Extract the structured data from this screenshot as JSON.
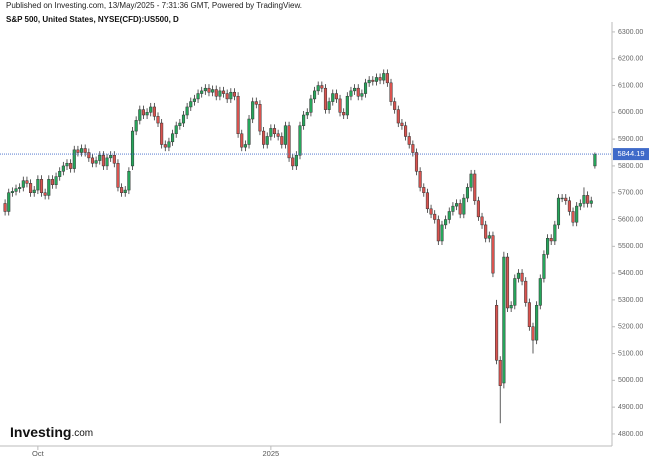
{
  "chart_data": {
    "type": "candlestick",
    "publisher_note": "Published on Investing.com, 13/May/2025 - 7:31:36 GMT, Powered by TradingView.",
    "title": "S&P 500, United States, NYSE(CFD):US500, D",
    "logo_main": "Investing",
    "logo_suffix": ".com",
    "up_color": "#26a65b",
    "down_color": "#d9534f",
    "last_price": 5844.19,
    "last_price_color": "#3f6ac9",
    "ylim": [
      4755,
      6337
    ],
    "yticks": [
      {
        "value": 4800,
        "label": "4800.00"
      },
      {
        "value": 4900,
        "label": "4900.00"
      },
      {
        "value": 5000,
        "label": "5000.00"
      },
      {
        "value": 5100,
        "label": "5100.00"
      },
      {
        "value": 5200,
        "label": "5200.00"
      },
      {
        "value": 5300,
        "label": "5300.00"
      },
      {
        "value": 5400,
        "label": "5400.00"
      },
      {
        "value": 5500,
        "label": "5500.00"
      },
      {
        "value": 5600,
        "label": "5600.00"
      },
      {
        "value": 5700,
        "label": "5700.00"
      },
      {
        "value": 5800,
        "label": "5800.00"
      },
      {
        "value": 5900,
        "label": "5900.00"
      },
      {
        "value": 6000,
        "label": "6000.00"
      },
      {
        "value": 6100,
        "label": "6100.00"
      },
      {
        "value": 6200,
        "label": "6200.00"
      },
      {
        "value": 6300,
        "label": "6300.00"
      }
    ],
    "xlim": [
      -1.4,
      166.7
    ],
    "xticks": [
      {
        "value": 9,
        "label": "Oct"
      },
      {
        "value": 73,
        "label": "2025"
      }
    ],
    "open": [
      5660,
      5630,
      5700,
      5705,
      5715,
      5720,
      5745,
      5735,
      5700,
      5710,
      5750,
      5700,
      5690,
      5750,
      5730,
      5760,
      5780,
      5800,
      5810,
      5790,
      5860,
      5850,
      5865,
      5850,
      5830,
      5810,
      5820,
      5840,
      5800,
      5830,
      5840,
      5810,
      5720,
      5700,
      5710,
      5800,
      5930,
      5970,
      6010,
      5990,
      6000,
      6020,
      5985,
      5960,
      5880,
      5870,
      5890,
      5920,
      5950,
      5960,
      5990,
      6020,
      6040,
      6050,
      6070,
      6080,
      6090,
      6075,
      6085,
      6060,
      6080,
      6070,
      6050,
      6075,
      6060,
      5920,
      5870,
      5880,
      5975,
      6040,
      6030,
      5930,
      5880,
      5910,
      5940,
      5920,
      5910,
      5880,
      5950,
      5830,
      5800,
      5840,
      5950,
      5990,
      6000,
      6050,
      6080,
      6100,
      6090,
      6010,
      6040,
      6070,
      6050,
      6000,
      5990,
      6060,
      6080,
      6090,
      6060,
      6070,
      6110,
      6120,
      6115,
      6130,
      6120,
      6145,
      6110,
      6040,
      6010,
      5960,
      5950,
      5910,
      5880,
      5850,
      5780,
      5720,
      5700,
      5640,
      5620,
      5600,
      5520,
      5580,
      5600,
      5630,
      5650,
      5660,
      5620,
      5680,
      5720,
      5770,
      5670,
      5610,
      5580,
      5530,
      5540,
      5280,
      5075,
      4990,
      5460,
      5270,
      5280,
      5380,
      5400,
      5370,
      5290,
      5200,
      5150,
      5280,
      5380,
      5470,
      5530,
      5520,
      5580,
      5680,
      5680,
      5670,
      5630,
      5590,
      5650,
      5660,
      5690,
      5660,
      5800
    ],
    "high": [
      5675,
      5715,
      5720,
      5730,
      5735,
      5760,
      5760,
      5750,
      5725,
      5765,
      5765,
      5715,
      5765,
      5765,
      5775,
      5795,
      5815,
      5825,
      5825,
      5875,
      5875,
      5880,
      5880,
      5865,
      5845,
      5835,
      5855,
      5855,
      5845,
      5855,
      5855,
      5825,
      5735,
      5725,
      5795,
      5945,
      5985,
      6025,
      6025,
      6015,
      6035,
      6035,
      6000,
      5975,
      5895,
      5905,
      5935,
      5965,
      5975,
      6005,
      6035,
      6055,
      6065,
      6085,
      6095,
      6105,
      6105,
      6100,
      6100,
      6095,
      6095,
      6085,
      6090,
      6090,
      6075,
      5935,
      5895,
      5990,
      6055,
      6055,
      6045,
      5945,
      5925,
      5955,
      5955,
      5935,
      5925,
      5965,
      5965,
      5845,
      5855,
      5965,
      6005,
      6015,
      6065,
      6095,
      6115,
      6115,
      6105,
      6055,
      6085,
      6085,
      6065,
      6015,
      6075,
      6095,
      6105,
      6105,
      6085,
      6125,
      6135,
      6135,
      6145,
      6145,
      6160,
      6160,
      6125,
      6055,
      6025,
      5975,
      5965,
      5925,
      5895,
      5865,
      5795,
      5735,
      5715,
      5655,
      5635,
      5615,
      5595,
      5615,
      5645,
      5665,
      5675,
      5675,
      5695,
      5735,
      5785,
      5785,
      5685,
      5625,
      5595,
      5555,
      5555,
      5300,
      5090,
      5480,
      5475,
      5295,
      5395,
      5415,
      5415,
      5385,
      5305,
      5215,
      5295,
      5395,
      5485,
      5545,
      5545,
      5595,
      5695,
      5695,
      5695,
      5685,
      5645,
      5665,
      5675,
      5720,
      5705,
      5685,
      5850
    ],
    "low": [
      5615,
      5615,
      5685,
      5690,
      5700,
      5705,
      5720,
      5685,
      5685,
      5695,
      5685,
      5675,
      5675,
      5715,
      5715,
      5745,
      5765,
      5785,
      5775,
      5775,
      5835,
      5835,
      5835,
      5815,
      5795,
      5795,
      5805,
      5785,
      5785,
      5815,
      5795,
      5705,
      5685,
      5685,
      5695,
      5785,
      5915,
      5955,
      5975,
      5975,
      5985,
      5970,
      5945,
      5865,
      5855,
      5855,
      5875,
      5905,
      5935,
      5945,
      5975,
      6005,
      6025,
      6035,
      6055,
      6065,
      6060,
      6060,
      6045,
      6045,
      6055,
      6035,
      6035,
      6045,
      5905,
      5855,
      5855,
      5865,
      5960,
      6015,
      5915,
      5865,
      5865,
      5895,
      5905,
      5895,
      5865,
      5865,
      5815,
      5785,
      5785,
      5825,
      5935,
      5975,
      5985,
      6035,
      6065,
      6075,
      5995,
      5995,
      6025,
      6035,
      5985,
      5975,
      5975,
      6045,
      6065,
      6045,
      6045,
      6055,
      6095,
      6100,
      6100,
      6105,
      6105,
      6095,
      6025,
      5995,
      5945,
      5935,
      5895,
      5865,
      5835,
      5765,
      5705,
      5685,
      5625,
      5605,
      5585,
      5505,
      5505,
      5565,
      5585,
      5615,
      5635,
      5605,
      5605,
      5665,
      5705,
      5655,
      5595,
      5565,
      5515,
      5515,
      5385,
      5060,
      4840,
      4970,
      5255,
      5255,
      5265,
      5365,
      5355,
      5275,
      5185,
      5100,
      5135,
      5265,
      5365,
      5455,
      5505,
      5505,
      5565,
      5665,
      5655,
      5615,
      5575,
      5575,
      5635,
      5645,
      5645,
      5645,
      5790
    ],
    "close": [
      5630,
      5700,
      5705,
      5715,
      5720,
      5745,
      5735,
      5700,
      5710,
      5750,
      5700,
      5690,
      5750,
      5730,
      5760,
      5780,
      5800,
      5810,
      5790,
      5860,
      5850,
      5865,
      5850,
      5830,
      5810,
      5820,
      5840,
      5800,
      5830,
      5840,
      5810,
      5720,
      5700,
      5710,
      5780,
      5930,
      5970,
      6010,
      5990,
      6000,
      6020,
      5985,
      5960,
      5880,
      5870,
      5890,
      5920,
      5950,
      5960,
      5990,
      6020,
      6040,
      6050,
      6070,
      6080,
      6090,
      6075,
      6085,
      6060,
      6080,
      6070,
      6050,
      6075,
      6060,
      5920,
      5870,
      5880,
      5975,
      6040,
      6030,
      5930,
      5880,
      5910,
      5940,
      5920,
      5910,
      5880,
      5950,
      5830,
      5800,
      5840,
      5950,
      5990,
      6000,
      6050,
      6080,
      6100,
      6090,
      6010,
      6040,
      6070,
      6050,
      6000,
      5990,
      6060,
      6080,
      6090,
      6060,
      6070,
      6110,
      6120,
      6115,
      6130,
      6120,
      6145,
      6110,
      6040,
      6010,
      5960,
      5950,
      5910,
      5880,
      5850,
      5780,
      5720,
      5700,
      5640,
      5620,
      5600,
      5520,
      5580,
      5600,
      5630,
      5650,
      5660,
      5620,
      5680,
      5720,
      5770,
      5670,
      5610,
      5580,
      5530,
      5540,
      5400,
      5075,
      4980,
      5460,
      5270,
      5280,
      5380,
      5400,
      5370,
      5290,
      5200,
      5150,
      5280,
      5380,
      5470,
      5530,
      5520,
      5580,
      5680,
      5680,
      5670,
      5630,
      5590,
      5650,
      5660,
      5690,
      5660,
      5670,
      5844
    ]
  }
}
